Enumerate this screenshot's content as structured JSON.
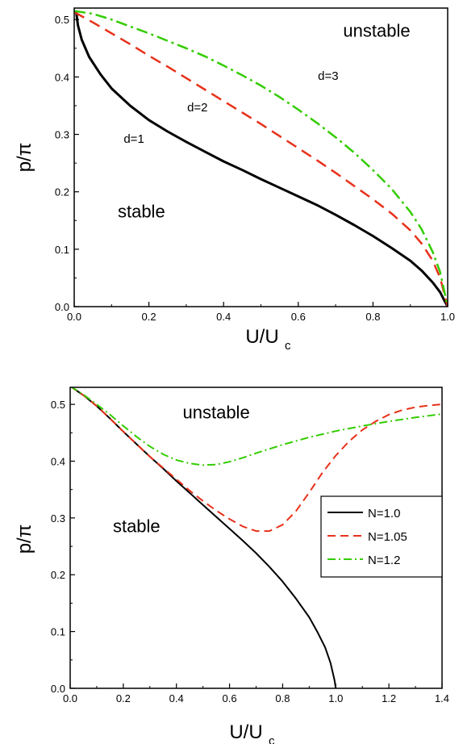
{
  "chart_data": [
    {
      "type": "line",
      "xlabel": "U/U",
      "xlabel_sub": "c",
      "ylabel": "p/π",
      "xlim": [
        0,
        1.0
      ],
      "ylim": [
        0,
        0.52
      ],
      "xticks": [
        "0.0",
        "0.2",
        "0.4",
        "0.6",
        "0.8",
        "1.0"
      ],
      "yticks": [
        "0.0",
        "0.1",
        "0.2",
        "0.3",
        "0.4",
        "0.5"
      ],
      "grid": false,
      "annotations": [
        {
          "text": "unstable",
          "x": 0.81,
          "y": 0.47
        },
        {
          "text": "stable",
          "x": 0.18,
          "y": 0.155
        },
        {
          "text": "d=1",
          "x": 0.16,
          "y": 0.285
        },
        {
          "text": "d=2",
          "x": 0.33,
          "y": 0.34
        },
        {
          "text": "d=3",
          "x": 0.68,
          "y": 0.395
        }
      ],
      "series": [
        {
          "name": "d=1",
          "color": "#000000",
          "dash": "",
          "width": 3,
          "points": [
            [
              0.005,
              0.515
            ],
            [
              0.01,
              0.49
            ],
            [
              0.02,
              0.465
            ],
            [
              0.04,
              0.435
            ],
            [
              0.07,
              0.405
            ],
            [
              0.1,
              0.38
            ],
            [
              0.15,
              0.35
            ],
            [
              0.2,
              0.325
            ],
            [
              0.25,
              0.305
            ],
            [
              0.3,
              0.287
            ],
            [
              0.35,
              0.27
            ],
            [
              0.4,
              0.253
            ],
            [
              0.45,
              0.238
            ],
            [
              0.5,
              0.222
            ],
            [
              0.55,
              0.207
            ],
            [
              0.6,
              0.192
            ],
            [
              0.65,
              0.177
            ],
            [
              0.7,
              0.16
            ],
            [
              0.75,
              0.142
            ],
            [
              0.8,
              0.123
            ],
            [
              0.85,
              0.102
            ],
            [
              0.9,
              0.08
            ],
            [
              0.93,
              0.063
            ],
            [
              0.96,
              0.042
            ],
            [
              0.98,
              0.025
            ],
            [
              0.99,
              0.012
            ],
            [
              1.0,
              0.0
            ]
          ]
        },
        {
          "name": "d=2",
          "color": "#e8311a",
          "dash": "14,8",
          "width": 2.5,
          "points": [
            [
              0.0,
              0.513
            ],
            [
              0.05,
              0.495
            ],
            [
              0.1,
              0.476
            ],
            [
              0.15,
              0.457
            ],
            [
              0.2,
              0.437
            ],
            [
              0.25,
              0.418
            ],
            [
              0.3,
              0.398
            ],
            [
              0.35,
              0.378
            ],
            [
              0.4,
              0.358
            ],
            [
              0.45,
              0.338
            ],
            [
              0.5,
              0.318
            ],
            [
              0.55,
              0.297
            ],
            [
              0.6,
              0.276
            ],
            [
              0.65,
              0.255
            ],
            [
              0.7,
              0.233
            ],
            [
              0.75,
              0.21
            ],
            [
              0.8,
              0.187
            ],
            [
              0.85,
              0.162
            ],
            [
              0.9,
              0.133
            ],
            [
              0.93,
              0.11
            ],
            [
              0.96,
              0.08
            ],
            [
              0.98,
              0.05
            ],
            [
              1.0,
              0.0
            ]
          ]
        },
        {
          "name": "d=3",
          "color": "#33cc00",
          "dash": "14,5,3,5",
          "width": 2.5,
          "points": [
            [
              0.0,
              0.515
            ],
            [
              0.05,
              0.51
            ],
            [
              0.1,
              0.5
            ],
            [
              0.15,
              0.488
            ],
            [
              0.2,
              0.476
            ],
            [
              0.25,
              0.463
            ],
            [
              0.3,
              0.45
            ],
            [
              0.35,
              0.436
            ],
            [
              0.4,
              0.42
            ],
            [
              0.45,
              0.403
            ],
            [
              0.5,
              0.385
            ],
            [
              0.55,
              0.365
            ],
            [
              0.6,
              0.343
            ],
            [
              0.65,
              0.32
            ],
            [
              0.7,
              0.295
            ],
            [
              0.75,
              0.268
            ],
            [
              0.8,
              0.238
            ],
            [
              0.85,
              0.205
            ],
            [
              0.9,
              0.165
            ],
            [
              0.93,
              0.135
            ],
            [
              0.96,
              0.095
            ],
            [
              0.98,
              0.06
            ],
            [
              1.0,
              0.0
            ]
          ]
        }
      ]
    },
    {
      "type": "line",
      "xlabel": "U/U",
      "xlabel_sub": "c",
      "ylabel": "p/π",
      "xlim": [
        0,
        1.4
      ],
      "ylim": [
        0,
        0.53
      ],
      "xticks": [
        "0.0",
        "0.2",
        "0.4",
        "0.6",
        "0.8",
        "1.0",
        "1.2",
        "1.4"
      ],
      "yticks": [
        "0.0",
        "0.1",
        "0.2",
        "0.3",
        "0.4",
        "0.5"
      ],
      "grid": false,
      "legend": "right-middle",
      "annotations": [
        {
          "text": "unstable",
          "x": 0.55,
          "y": 0.475
        },
        {
          "text": "stable",
          "x": 0.25,
          "y": 0.275
        }
      ],
      "series": [
        {
          "name": "N=1.0",
          "color": "#000000",
          "dash": "",
          "width": 2,
          "points": [
            [
              0.0,
              0.532
            ],
            [
              0.05,
              0.516
            ],
            [
              0.1,
              0.497
            ],
            [
              0.15,
              0.475
            ],
            [
              0.2,
              0.452
            ],
            [
              0.25,
              0.43
            ],
            [
              0.3,
              0.408
            ],
            [
              0.35,
              0.387
            ],
            [
              0.4,
              0.365
            ],
            [
              0.45,
              0.344
            ],
            [
              0.5,
              0.323
            ],
            [
              0.55,
              0.302
            ],
            [
              0.6,
              0.281
            ],
            [
              0.65,
              0.26
            ],
            [
              0.7,
              0.238
            ],
            [
              0.75,
              0.214
            ],
            [
              0.8,
              0.188
            ],
            [
              0.85,
              0.158
            ],
            [
              0.9,
              0.125
            ],
            [
              0.93,
              0.1
            ],
            [
              0.96,
              0.072
            ],
            [
              0.98,
              0.045
            ],
            [
              0.995,
              0.015
            ],
            [
              1.0,
              0.0
            ]
          ]
        },
        {
          "name": "N=1.05",
          "color": "#e8311a",
          "dash": "10,6",
          "width": 2,
          "points": [
            [
              0.0,
              0.532
            ],
            [
              0.05,
              0.516
            ],
            [
              0.1,
              0.497
            ],
            [
              0.15,
              0.475
            ],
            [
              0.2,
              0.452
            ],
            [
              0.25,
              0.43
            ],
            [
              0.3,
              0.408
            ],
            [
              0.35,
              0.388
            ],
            [
              0.4,
              0.368
            ],
            [
              0.45,
              0.348
            ],
            [
              0.5,
              0.33
            ],
            [
              0.55,
              0.313
            ],
            [
              0.6,
              0.298
            ],
            [
              0.65,
              0.285
            ],
            [
              0.7,
              0.277
            ],
            [
              0.75,
              0.277
            ],
            [
              0.8,
              0.288
            ],
            [
              0.85,
              0.312
            ],
            [
              0.9,
              0.345
            ],
            [
              0.95,
              0.38
            ],
            [
              1.0,
              0.41
            ],
            [
              1.05,
              0.435
            ],
            [
              1.1,
              0.455
            ],
            [
              1.15,
              0.47
            ],
            [
              1.2,
              0.482
            ],
            [
              1.25,
              0.49
            ],
            [
              1.3,
              0.495
            ],
            [
              1.35,
              0.498
            ],
            [
              1.4,
              0.5
            ]
          ]
        },
        {
          "name": "N=1.2",
          "color": "#33cc00",
          "dash": "10,4,2,4",
          "width": 2,
          "points": [
            [
              0.0,
              0.532
            ],
            [
              0.05,
              0.517
            ],
            [
              0.1,
              0.5
            ],
            [
              0.15,
              0.482
            ],
            [
              0.2,
              0.462
            ],
            [
              0.25,
              0.443
            ],
            [
              0.3,
              0.426
            ],
            [
              0.35,
              0.412
            ],
            [
              0.4,
              0.402
            ],
            [
              0.45,
              0.396
            ],
            [
              0.5,
              0.393
            ],
            [
              0.55,
              0.394
            ],
            [
              0.6,
              0.399
            ],
            [
              0.65,
              0.406
            ],
            [
              0.7,
              0.414
            ],
            [
              0.8,
              0.429
            ],
            [
              0.9,
              0.442
            ],
            [
              1.0,
              0.453
            ],
            [
              1.1,
              0.462
            ],
            [
              1.2,
              0.47
            ],
            [
              1.3,
              0.477
            ],
            [
              1.4,
              0.483
            ]
          ]
        }
      ]
    }
  ]
}
